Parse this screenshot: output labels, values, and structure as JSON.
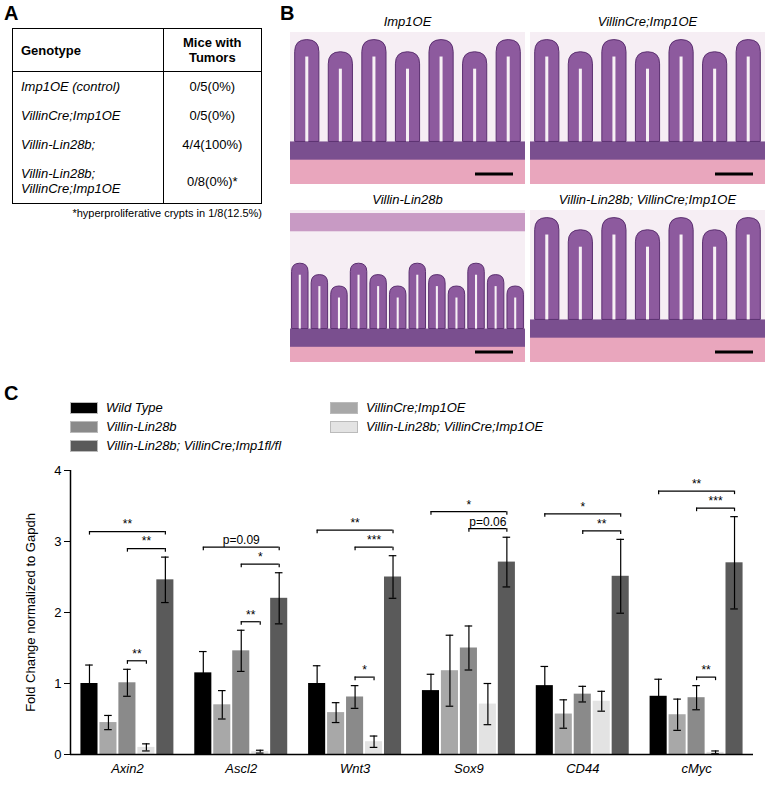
{
  "panels": [
    "A",
    "B",
    "C"
  ],
  "table": {
    "headers": [
      "Genotype",
      "Mice with Tumors"
    ],
    "rows": [
      [
        "Imp1OE (control)",
        "0/5(0%)"
      ],
      [
        "VillinCre;Imp1OE",
        "0/5(0%)"
      ],
      [
        "Villin-Lin28b;",
        "4/4(100%)"
      ],
      [
        "Villin-Lin28b; VillinCre;Imp1OE",
        "0/8(0%)*"
      ]
    ],
    "footnote": "*hyperproliferative crypts in 1/8(12.5%)"
  },
  "images": {
    "titles": [
      "Imp1OE",
      "VillinCre;Imp1OE",
      "Villin-Lin28b",
      "Villin-Lin28b; VillinCre;Imp1OE"
    ]
  },
  "chart_data": {
    "type": "bar",
    "y_label": "Fold Change normalized to Gapdh",
    "categories": [
      "Axin2",
      "Ascl2",
      "Wnt3",
      "Sox9",
      "CD44",
      "cMyc"
    ],
    "ylim": [
      0,
      4
    ],
    "yticks": [
      0,
      1,
      2,
      3,
      4
    ],
    "legend": "top-left",
    "series": [
      {
        "name": "Wild Type",
        "color": "#000000",
        "values": [
          1.0,
          1.15,
          1.0,
          0.9,
          0.97,
          0.82
        ],
        "errors": [
          0.26,
          0.3,
          0.25,
          0.23,
          0.27,
          0.24
        ]
      },
      {
        "name": "VillinCre;Imp1OE",
        "color": "#a8a8a8",
        "values": [
          0.45,
          0.7,
          0.59,
          1.18,
          0.57,
          0.56
        ],
        "errors": [
          0.1,
          0.2,
          0.14,
          0.5,
          0.2,
          0.22
        ]
      },
      {
        "name": "Villin-Lin28b",
        "color": "#8a8a8a",
        "values": [
          1.01,
          1.46,
          0.81,
          1.5,
          0.85,
          0.8
        ],
        "errors": [
          0.19,
          0.29,
          0.16,
          0.31,
          0.11,
          0.17
        ]
      },
      {
        "name": "Villin-Lin28b; VillinCre;Imp1OE",
        "color": "#e3e3e3",
        "values": [
          0.1,
          0.04,
          0.18,
          0.71,
          0.75,
          0.03
        ],
        "errors": [
          0.05,
          0.02,
          0.08,
          0.29,
          0.14,
          0.02
        ]
      },
      {
        "name": "Villin-Lin28b; VillinCre;Imp1fl/fl",
        "color": "#5a5a5a",
        "values": [
          2.46,
          2.2,
          2.5,
          2.71,
          2.51,
          2.7
        ],
        "errors": [
          0.32,
          0.36,
          0.3,
          0.35,
          0.52,
          0.65
        ]
      }
    ],
    "significance": [
      {
        "category": "Axin2",
        "from": "Wild Type",
        "to": "Villin-Lin28b; VillinCre;Imp1fl/fl",
        "label": "**"
      },
      {
        "category": "Axin2",
        "from": "Villin-Lin28b",
        "to": "Villin-Lin28b; VillinCre;Imp1fl/fl",
        "label": "**"
      },
      {
        "category": "Axin2",
        "from": "Villin-Lin28b",
        "to": "Villin-Lin28b; VillinCre;Imp1OE",
        "label": "**"
      },
      {
        "category": "Ascl2",
        "from": "Wild Type",
        "to": "Villin-Lin28b; VillinCre;Imp1fl/fl",
        "label": "p=0.09"
      },
      {
        "category": "Ascl2",
        "from": "Villin-Lin28b",
        "to": "Villin-Lin28b; VillinCre;Imp1fl/fl",
        "label": "*"
      },
      {
        "category": "Ascl2",
        "from": "Villin-Lin28b",
        "to": "Villin-Lin28b; VillinCre;Imp1OE",
        "label": "**"
      },
      {
        "category": "Wnt3",
        "from": "Wild Type",
        "to": "Villin-Lin28b; VillinCre;Imp1fl/fl",
        "label": "**"
      },
      {
        "category": "Wnt3",
        "from": "Villin-Lin28b",
        "to": "Villin-Lin28b; VillinCre;Imp1fl/fl",
        "label": "***"
      },
      {
        "category": "Wnt3",
        "from": "Villin-Lin28b",
        "to": "Villin-Lin28b; VillinCre;Imp1OE",
        "label": "*"
      },
      {
        "category": "Sox9",
        "from": "Wild Type",
        "to": "Villin-Lin28b; VillinCre;Imp1fl/fl",
        "label": "*"
      },
      {
        "category": "Sox9",
        "from": "Villin-Lin28b",
        "to": "Villin-Lin28b; VillinCre;Imp1fl/fl",
        "label": "p=0.06"
      },
      {
        "category": "CD44",
        "from": "Wild Type",
        "to": "Villin-Lin28b; VillinCre;Imp1fl/fl",
        "label": "*"
      },
      {
        "category": "CD44",
        "from": "Villin-Lin28b",
        "to": "Villin-Lin28b; VillinCre;Imp1fl/fl",
        "label": "**"
      },
      {
        "category": "cMyc",
        "from": "Wild Type",
        "to": "Villin-Lin28b; VillinCre;Imp1fl/fl",
        "label": "**"
      },
      {
        "category": "cMyc",
        "from": "Villin-Lin28b",
        "to": "Villin-Lin28b; VillinCre;Imp1fl/fl",
        "label": "***"
      },
      {
        "category": "cMyc",
        "from": "Villin-Lin28b",
        "to": "Villin-Lin28b; VillinCre;Imp1OE",
        "label": "**"
      }
    ]
  }
}
